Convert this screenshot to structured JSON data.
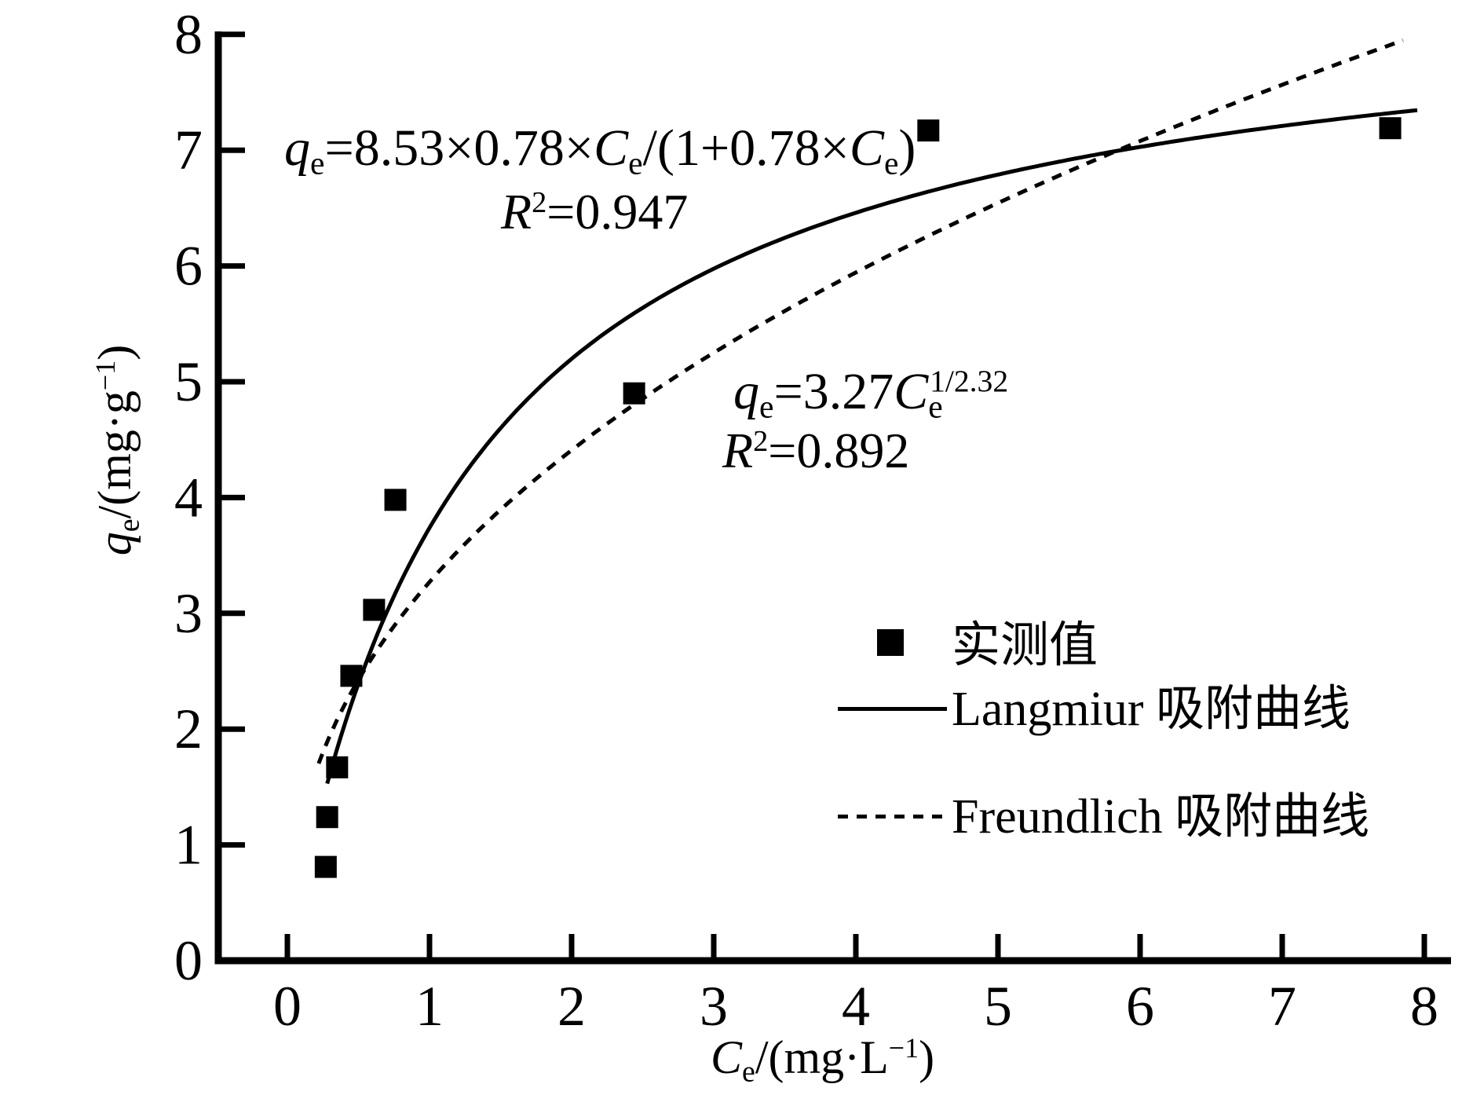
{
  "figure": {
    "background": "#ffffff",
    "ink": "#000000"
  },
  "axes": {
    "x_title_text": "Ce/(mg·L−1)",
    "y_title_text": "qe/(mg·g−1)",
    "x_title_rich": [
      {
        "t": "C",
        "s": "i"
      },
      {
        "t": "e",
        "s": "sub"
      },
      {
        "t": "/(mg·L"
      },
      {
        "t": "−1",
        "s": "sup"
      },
      {
        "t": ")"
      }
    ],
    "y_title_rich": [
      {
        "t": "q",
        "s": "i"
      },
      {
        "t": "e",
        "s": "sub"
      },
      {
        "t": "/(mg·g"
      },
      {
        "t": "−1",
        "s": "sup"
      },
      {
        "t": ")"
      }
    ]
  },
  "annotations": {
    "langmuir": {
      "equation_text": "qe=8.53×0.78×Ce/(1+0.78×Ce)",
      "equation": [
        {
          "t": "q",
          "s": "i"
        },
        {
          "t": "e",
          "s": "sub"
        },
        {
          "t": "=8.53×0.78×"
        },
        {
          "t": "C",
          "s": "i"
        },
        {
          "t": "e",
          "s": "sub"
        },
        {
          "t": "/(1+0.78×"
        },
        {
          "t": "C",
          "s": "i"
        },
        {
          "t": "e",
          "s": "sub"
        },
        {
          "t": ")"
        }
      ],
      "r2_text": "R2=0.947",
      "r2": [
        {
          "t": "R",
          "s": "i"
        },
        {
          "t": "2",
          "s": "sup"
        },
        {
          "t": "=0.947"
        }
      ]
    },
    "freundlich": {
      "equation_text": "qe=3.27Ce 1/2.32",
      "equation": [
        {
          "t": "q",
          "s": "i"
        },
        {
          "t": "e",
          "s": "sub"
        },
        {
          "t": "=3.27"
        },
        {
          "t": "C",
          "s": "i"
        },
        {
          "t": "e",
          "s": "sub"
        },
        {
          "t": "1/2.32",
          "s": "supt"
        }
      ],
      "r2_text": "R2=0.892",
      "r2": [
        {
          "t": "R",
          "s": "i"
        },
        {
          "t": "2",
          "s": "sup"
        },
        {
          "t": "=0.892"
        }
      ]
    }
  },
  "legend": {
    "items": [
      {
        "label": "实测值",
        "sample": "square-marker"
      },
      {
        "label": "Langmiur 吸附曲线",
        "sample": "solid-line"
      },
      {
        "label": "Freundlich 吸附曲线",
        "sample": "dashed-line"
      }
    ]
  },
  "chart_data": {
    "type": "scatter",
    "title": "",
    "xlabel": "Ce/(mg·L−1)",
    "ylabel": "qe/(mg·g−1)",
    "xlim": [
      0,
      8
    ],
    "ylim": [
      0,
      8
    ],
    "x_ticks": [
      0,
      1,
      2,
      3,
      4,
      5,
      6,
      7,
      8
    ],
    "y_ticks": [
      0,
      1,
      2,
      3,
      4,
      5,
      6,
      7,
      8
    ],
    "grid": false,
    "legend_position": "right-center",
    "points_name": "实测值",
    "points": [
      [
        0.27,
        0.81
      ],
      [
        0.28,
        1.24
      ],
      [
        0.35,
        1.67
      ],
      [
        0.45,
        2.46
      ],
      [
        0.61,
        3.03
      ],
      [
        0.76,
        3.98
      ],
      [
        2.44,
        4.9
      ],
      [
        4.51,
        7.17
      ],
      [
        7.76,
        7.19
      ]
    ],
    "curves": [
      {
        "name": "Langmiur 吸附曲线",
        "model": "langmuir",
        "formula": "qe=8.53×0.78×Ce/(1+0.78×Ce)",
        "qm": 8.53,
        "kl": 0.78,
        "r2": 0.947,
        "c_start": 0.28,
        "c_end": 7.95,
        "line": "solid"
      },
      {
        "name": "Freundlich 吸附曲线",
        "model": "freundlich",
        "formula": "qe=3.27×Ce^(1/2.32)",
        "kf": 3.27,
        "n": 2.32,
        "r2": 0.892,
        "c_start": 0.22,
        "c_end": 7.85,
        "line": "dashed"
      }
    ]
  }
}
